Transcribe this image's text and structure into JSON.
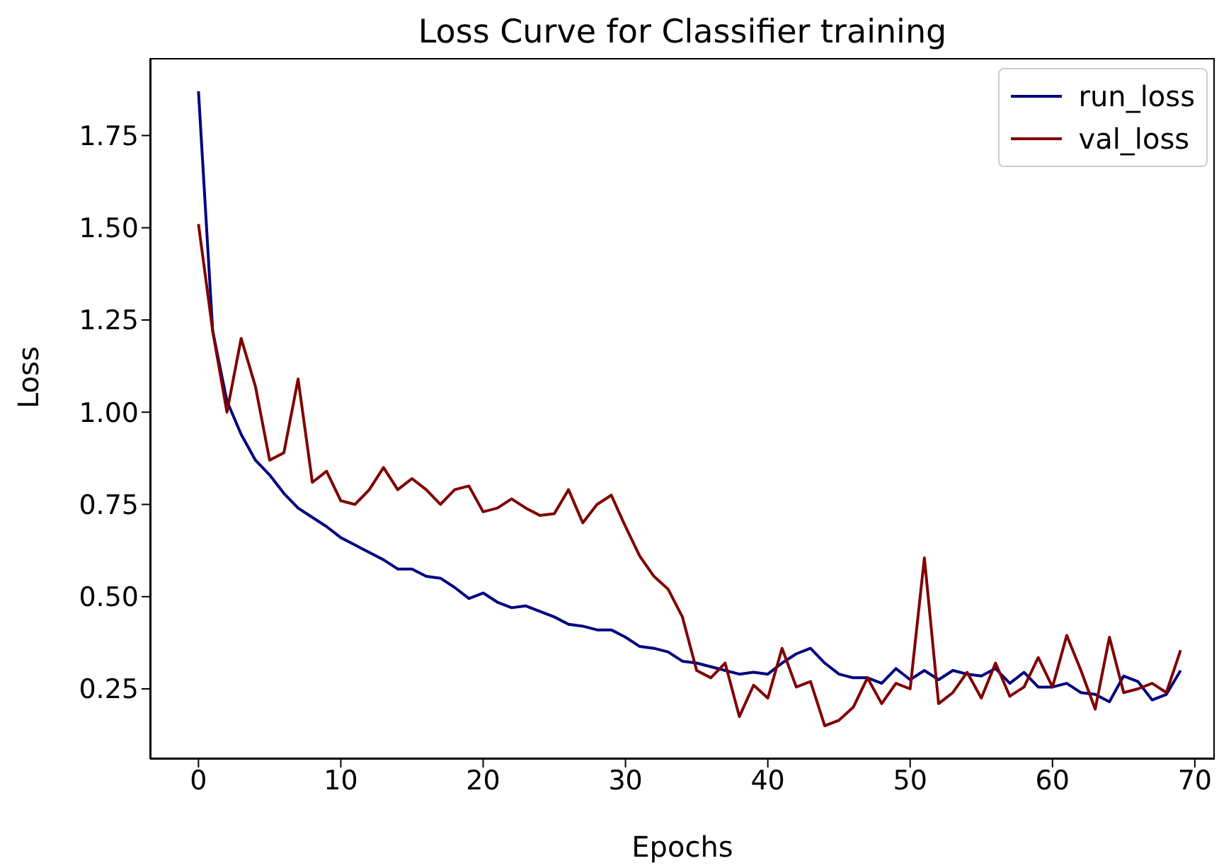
{
  "chart_data": {
    "type": "line",
    "title": "Loss Curve for Classifier training",
    "xlabel": "Epochs",
    "ylabel": "Loss",
    "x": [
      0,
      1,
      2,
      3,
      4,
      5,
      6,
      7,
      8,
      9,
      10,
      11,
      12,
      13,
      14,
      15,
      16,
      17,
      18,
      19,
      20,
      21,
      22,
      23,
      24,
      25,
      26,
      27,
      28,
      29,
      30,
      31,
      32,
      33,
      34,
      35,
      36,
      37,
      38,
      39,
      40,
      41,
      42,
      43,
      44,
      45,
      46,
      47,
      48,
      49,
      50,
      51,
      52,
      53,
      54,
      55,
      56,
      57,
      58,
      59,
      60,
      61,
      62,
      63,
      64,
      65,
      66,
      67,
      68,
      69
    ],
    "series": [
      {
        "name": "run_loss",
        "color": "#000080",
        "values": [
          1.87,
          1.22,
          1.03,
          0.94,
          0.87,
          0.83,
          0.78,
          0.74,
          0.715,
          0.69,
          0.66,
          0.64,
          0.62,
          0.6,
          0.575,
          0.575,
          0.555,
          0.55,
          0.525,
          0.495,
          0.51,
          0.485,
          0.47,
          0.475,
          0.46,
          0.445,
          0.425,
          0.42,
          0.41,
          0.41,
          0.39,
          0.365,
          0.36,
          0.35,
          0.325,
          0.32,
          0.31,
          0.3,
          0.29,
          0.295,
          0.29,
          0.32,
          0.345,
          0.36,
          0.32,
          0.29,
          0.28,
          0.28,
          0.265,
          0.305,
          0.275,
          0.3,
          0.275,
          0.3,
          0.29,
          0.285,
          0.305,
          0.265,
          0.295,
          0.255,
          0.255,
          0.265,
          0.24,
          0.235,
          0.215,
          0.285,
          0.27,
          0.22,
          0.235,
          0.3
        ]
      },
      {
        "name": "val_loss",
        "color": "#800000",
        "values": [
          1.51,
          1.22,
          1.0,
          1.2,
          1.07,
          0.87,
          0.89,
          1.09,
          0.81,
          0.84,
          0.76,
          0.75,
          0.79,
          0.85,
          0.79,
          0.82,
          0.79,
          0.75,
          0.79,
          0.8,
          0.73,
          0.74,
          0.765,
          0.74,
          0.72,
          0.725,
          0.79,
          0.7,
          0.75,
          0.775,
          0.69,
          0.61,
          0.555,
          0.52,
          0.445,
          0.3,
          0.28,
          0.32,
          0.175,
          0.26,
          0.225,
          0.36,
          0.255,
          0.27,
          0.15,
          0.165,
          0.2,
          0.28,
          0.21,
          0.265,
          0.25,
          0.605,
          0.21,
          0.24,
          0.295,
          0.225,
          0.32,
          0.23,
          0.255,
          0.335,
          0.255,
          0.395,
          0.3,
          0.195,
          0.39,
          0.24,
          0.25,
          0.265,
          0.24,
          0.355
        ]
      }
    ],
    "xlim": [
      -3.4,
      71.4
    ],
    "xticks": [
      0,
      10,
      20,
      30,
      40,
      50,
      60,
      70
    ],
    "ylim": [
      0.06,
      1.96
    ],
    "yticks": [
      0.25,
      {
        "value": 0.5,
        "label": "0.50"
      },
      0.75,
      {
        "value": 1.0,
        "label": "1.00"
      },
      1.25,
      {
        "value": 1.5,
        "label": "1.50"
      },
      1.75
    ],
    "grid": false,
    "legend": "top right",
    "marker": "none",
    "line_style": "solid"
  }
}
